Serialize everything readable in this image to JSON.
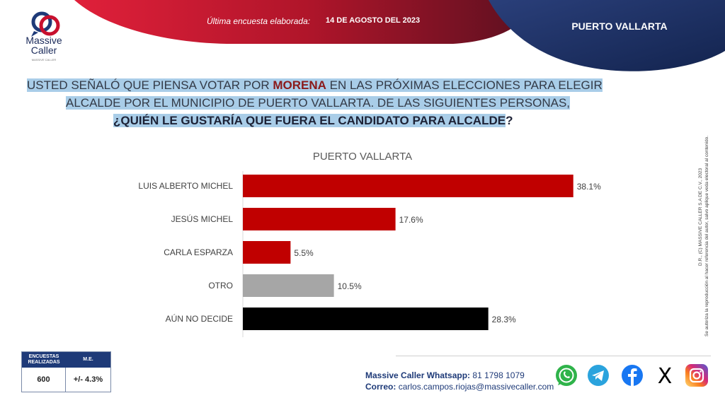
{
  "header": {
    "logo_text_line1": "Massive",
    "logo_text_line2": "Caller",
    "logo_tagline": "MASSIVE CALLER",
    "survey_label": "Última encuesta elaborada:",
    "survey_date": "14 DE AGOSTO DEL 2023",
    "region": "PUERTO VALLARTA"
  },
  "question": {
    "line1_pre": "USTED SEÑALÓ QUE PIENSA VOTAR POR ",
    "line1_party": "MORENA",
    "line1_post": " EN LAS PRÓXIMAS ELECCIONES PARA ELEGIR",
    "line2": "ALCALDE POR EL MUNICIPIO DE PUERTO VALLARTA.  DE LAS SIGUIENTES PERSONAS,",
    "line3": "¿QUIÉN LE GUSTARÍA QUE FUERA EL CANDIDATO PARA ALCALDE",
    "line3_end": "?"
  },
  "chart_data": {
    "type": "bar",
    "orientation": "horizontal",
    "title": "PUERTO VALLARTA",
    "categories": [
      "LUIS ALBERTO MICHEL",
      "JESÚS MICHEL",
      "CARLA ESPARZA",
      "OTRO",
      "AÚN NO DECIDE"
    ],
    "values": [
      38.1,
      17.6,
      5.5,
      10.5,
      28.3
    ],
    "labels": [
      "38.1%",
      "17.6%",
      "5.5%",
      "10.5%",
      "28.3%"
    ],
    "colors": [
      "#c00000",
      "#c00000",
      "#c00000",
      "#a6a6a6",
      "#000000"
    ],
    "xlim": [
      0,
      40
    ],
    "unit": "%"
  },
  "legal_text": {
    "line1": "D.R., (C) MASSIVE CALLER S.A DE C.V., 2023",
    "line2": "Se autoriza la reproducción al hacer referencia del autor, salvo aplique veda electoral al contenido."
  },
  "footer": {
    "col1_header_l1": "ENCUESTAS",
    "col1_header_l2": "REALIZADAS",
    "col2_header": "M.E.",
    "col1_value": "600",
    "col2_value": "+/- 4.3%",
    "whatsapp_label": "Massive Caller Whatsapp:",
    "whatsapp_number": "81 1798 1079",
    "email_label": "Correo:",
    "email": "carlos.campos.riojas@massivecaller.com"
  },
  "social": {
    "x_letter": "X"
  },
  "colors": {
    "red": "#c00000",
    "navy": "#1e3a78",
    "gray": "#a6a6a6",
    "highlight": "#a9cde8"
  }
}
